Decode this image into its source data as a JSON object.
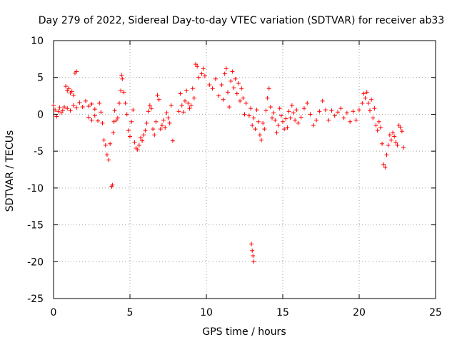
{
  "chart_data": {
    "type": "scatter",
    "title": "Day 279 of 2022, Sidereal Day-to-day VTEC variation (SDTVAR) for receiver ab33",
    "xlabel": "GPS time / hours",
    "ylabel": "SDTVAR / TECUs",
    "xlim": [
      0,
      25
    ],
    "ylim": [
      -25,
      10
    ],
    "x_ticks": [
      0,
      5,
      10,
      15,
      20,
      25
    ],
    "x_tick_labels": [
      "0",
      "5",
      "10",
      "15",
      "20",
      "25"
    ],
    "y_ticks": [
      10,
      5,
      0,
      -5,
      -10,
      -15,
      -20,
      -25
    ],
    "y_tick_labels": [
      "10",
      "5",
      "0",
      "-5",
      "-10",
      "-15",
      "-20",
      "-25"
    ],
    "grid": true,
    "marker": "plus",
    "series": [
      {
        "name": "SDTVAR",
        "color": "#ff0000",
        "points": [
          [
            0.0,
            1.2
          ],
          [
            0.1,
            0.6
          ],
          [
            0.2,
            -0.3
          ],
          [
            0.3,
            0.4
          ],
          [
            0.4,
            0.9
          ],
          [
            0.5,
            0.2
          ],
          [
            0.6,
            0.5
          ],
          [
            0.7,
            1.0
          ],
          [
            0.8,
            3.8
          ],
          [
            0.9,
            3.2
          ],
          [
            1.0,
            3.5
          ],
          [
            1.1,
            2.9
          ],
          [
            1.2,
            3.1
          ],
          [
            1.3,
            2.6
          ],
          [
            1.4,
            5.6
          ],
          [
            1.5,
            5.8
          ],
          [
            0.9,
            0.8
          ],
          [
            1.1,
            0.5
          ],
          [
            1.3,
            1.2
          ],
          [
            1.5,
            0.9
          ],
          [
            1.7,
            1.6
          ],
          [
            1.9,
            1.0
          ],
          [
            2.1,
            1.8
          ],
          [
            2.3,
            1.1
          ],
          [
            2.5,
            1.4
          ],
          [
            2.7,
            0.7
          ],
          [
            2.3,
            -0.4
          ],
          [
            2.5,
            -0.8
          ],
          [
            2.7,
            -0.2
          ],
          [
            2.9,
            -0.9
          ],
          [
            3.0,
            1.5
          ],
          [
            3.1,
            0.3
          ],
          [
            3.2,
            -1.2
          ],
          [
            3.3,
            -3.5
          ],
          [
            3.4,
            -4.2
          ],
          [
            3.5,
            -5.5
          ],
          [
            3.6,
            -6.2
          ],
          [
            3.7,
            -4.0
          ],
          [
            3.8,
            -9.8
          ],
          [
            3.85,
            -9.6
          ],
          [
            3.9,
            -2.5
          ],
          [
            3.95,
            -1.0
          ],
          [
            4.0,
            0.5
          ],
          [
            4.1,
            -0.8
          ],
          [
            4.2,
            -0.5
          ],
          [
            4.3,
            1.5
          ],
          [
            4.4,
            3.2
          ],
          [
            4.45,
            5.3
          ],
          [
            4.5,
            4.8
          ],
          [
            4.6,
            3.0
          ],
          [
            4.7,
            1.5
          ],
          [
            4.8,
            0.0
          ],
          [
            4.9,
            -2.2
          ],
          [
            5.0,
            -3.0
          ],
          [
            5.1,
            -1.0
          ],
          [
            5.2,
            0.6
          ],
          [
            5.3,
            -3.8
          ],
          [
            5.4,
            -4.6
          ],
          [
            5.5,
            -4.8
          ],
          [
            5.6,
            -4.2
          ],
          [
            5.7,
            -3.2
          ],
          [
            5.8,
            -3.6
          ],
          [
            5.9,
            -2.8
          ],
          [
            6.0,
            -2.2
          ],
          [
            6.1,
            -1.2
          ],
          [
            6.2,
            0.4
          ],
          [
            6.3,
            1.2
          ],
          [
            6.4,
            0.8
          ],
          [
            6.5,
            -2.0
          ],
          [
            6.6,
            -2.8
          ],
          [
            6.7,
            -1.0
          ],
          [
            6.8,
            2.6
          ],
          [
            6.9,
            2.0
          ],
          [
            7.0,
            -2.0
          ],
          [
            7.1,
            -1.5
          ],
          [
            7.2,
            -0.8
          ],
          [
            7.3,
            -1.8
          ],
          [
            7.4,
            0.2
          ],
          [
            7.5,
            -0.5
          ],
          [
            7.6,
            -1.2
          ],
          [
            7.7,
            1.2
          ],
          [
            7.8,
            -3.6
          ],
          [
            8.2,
            0.4
          ],
          [
            8.3,
            2.8
          ],
          [
            8.4,
            1.2
          ],
          [
            8.5,
            0.3
          ],
          [
            8.6,
            1.8
          ],
          [
            8.7,
            3.2
          ],
          [
            8.8,
            1.5
          ],
          [
            8.9,
            0.8
          ],
          [
            9.0,
            1.2
          ],
          [
            9.1,
            3.5
          ],
          [
            9.2,
            2.2
          ],
          [
            9.3,
            6.8
          ],
          [
            9.4,
            6.5
          ],
          [
            9.5,
            5.0
          ],
          [
            9.7,
            5.5
          ],
          [
            9.8,
            6.2
          ],
          [
            9.9,
            5.2
          ],
          [
            10.2,
            4.0
          ],
          [
            10.4,
            3.5
          ],
          [
            10.6,
            4.8
          ],
          [
            10.8,
            2.5
          ],
          [
            11.0,
            4.0
          ],
          [
            11.1,
            2.0
          ],
          [
            11.2,
            5.5
          ],
          [
            11.3,
            6.2
          ],
          [
            11.4,
            3.0
          ],
          [
            11.5,
            1.0
          ],
          [
            11.6,
            4.5
          ],
          [
            11.7,
            5.8
          ],
          [
            11.8,
            3.6
          ],
          [
            11.9,
            4.8
          ],
          [
            12.0,
            2.8
          ],
          [
            12.1,
            4.2
          ],
          [
            12.2,
            1.8
          ],
          [
            12.3,
            3.5
          ],
          [
            12.4,
            2.2
          ],
          [
            12.5,
            0.0
          ],
          [
            12.6,
            1.5
          ],
          [
            12.8,
            -0.2
          ],
          [
            12.9,
            0.8
          ],
          [
            13.0,
            -1.5
          ],
          [
            13.1,
            -0.5
          ],
          [
            13.2,
            -2.0
          ],
          [
            13.3,
            0.6
          ],
          [
            13.4,
            -1.0
          ],
          [
            13.5,
            -2.8
          ],
          [
            13.6,
            -3.5
          ],
          [
            13.7,
            -1.2
          ],
          [
            13.8,
            -2.0
          ],
          [
            13.9,
            0.5
          ],
          [
            14.0,
            2.2
          ],
          [
            14.1,
            3.5
          ],
          [
            14.2,
            1.0
          ],
          [
            14.3,
            -0.5
          ],
          [
            14.4,
            0.2
          ],
          [
            14.5,
            -0.8
          ],
          [
            14.6,
            -2.5
          ],
          [
            14.7,
            -1.5
          ],
          [
            14.8,
            0.8
          ],
          [
            14.9,
            -0.2
          ],
          [
            15.0,
            -1.0
          ],
          [
            15.1,
            -2.0
          ],
          [
            15.2,
            -0.6
          ],
          [
            15.3,
            -1.8
          ],
          [
            15.4,
            0.4
          ],
          [
            15.5,
            -0.5
          ],
          [
            15.6,
            1.2
          ],
          [
            15.7,
            0.2
          ],
          [
            15.8,
            -0.8
          ],
          [
            15.9,
            0.6
          ],
          [
            16.0,
            -1.2
          ],
          [
            16.2,
            -0.4
          ],
          [
            16.4,
            0.8
          ],
          [
            16.6,
            1.5
          ],
          [
            16.8,
            0.0
          ],
          [
            17.0,
            -1.5
          ],
          [
            17.2,
            -0.8
          ],
          [
            17.4,
            0.4
          ],
          [
            17.6,
            1.8
          ],
          [
            17.8,
            0.6
          ],
          [
            18.0,
            -0.8
          ],
          [
            18.2,
            0.5
          ],
          [
            18.4,
            -0.2
          ],
          [
            18.6,
            0.3
          ],
          [
            18.8,
            0.8
          ],
          [
            19.0,
            -0.5
          ],
          [
            19.2,
            0.2
          ],
          [
            19.4,
            -1.0
          ],
          [
            19.6,
            0.4
          ],
          [
            19.8,
            -0.8
          ],
          [
            20.0,
            0.6
          ],
          [
            20.2,
            1.5
          ],
          [
            20.3,
            2.8
          ],
          [
            20.4,
            2.2
          ],
          [
            20.5,
            3.0
          ],
          [
            20.6,
            1.5
          ],
          [
            20.7,
            0.5
          ],
          [
            20.8,
            2.0
          ],
          [
            20.9,
            -0.5
          ],
          [
            21.0,
            0.8
          ],
          [
            21.1,
            -1.5
          ],
          [
            21.2,
            -2.2
          ],
          [
            21.3,
            -1.0
          ],
          [
            21.4,
            -1.8
          ],
          [
            21.5,
            -4.0
          ],
          [
            21.6,
            -6.8
          ],
          [
            21.7,
            -7.2
          ],
          [
            21.8,
            -5.5
          ],
          [
            21.9,
            -4.2
          ],
          [
            22.0,
            -2.8
          ],
          [
            22.1,
            -3.5
          ],
          [
            22.2,
            -2.5
          ],
          [
            22.3,
            -3.0
          ],
          [
            22.4,
            -3.8
          ],
          [
            22.5,
            -4.2
          ],
          [
            22.6,
            -1.5
          ],
          [
            22.7,
            -1.8
          ],
          [
            22.8,
            -2.3
          ],
          [
            22.9,
            -4.5
          ],
          [
            12.95,
            -17.6
          ],
          [
            13.0,
            -18.5
          ],
          [
            13.05,
            -19.2
          ],
          [
            13.1,
            -20.0
          ]
        ]
      }
    ]
  }
}
